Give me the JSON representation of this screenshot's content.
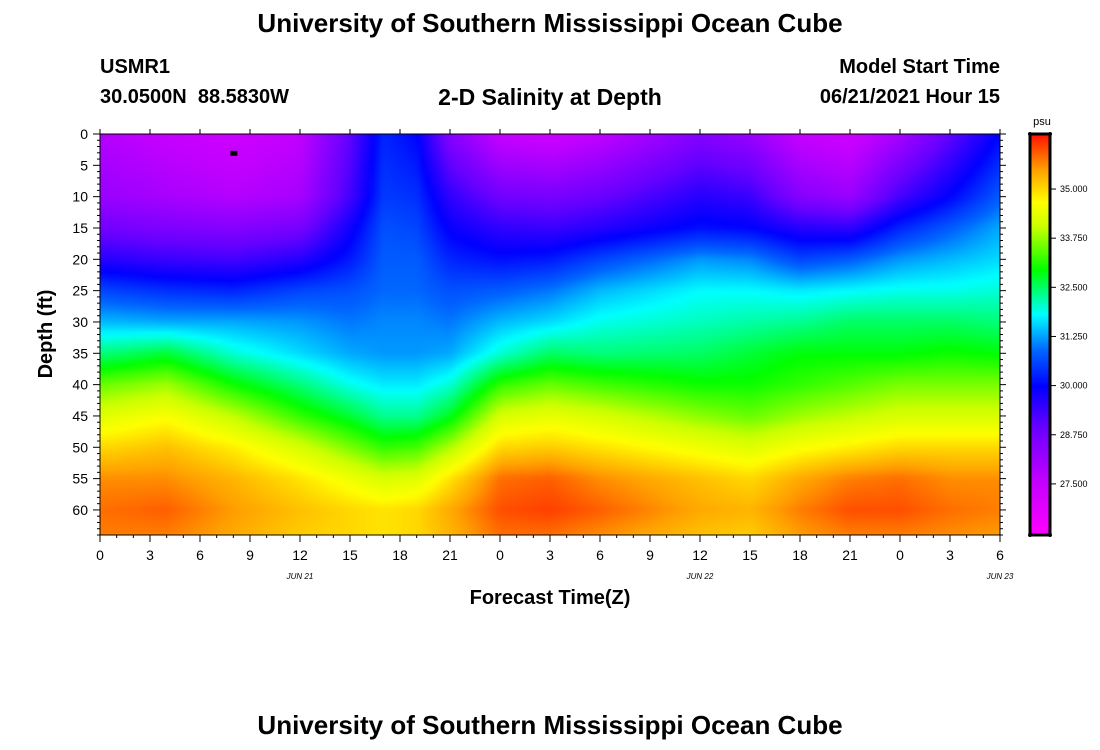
{
  "header": {
    "title": "University of Southern Mississippi Ocean Cube",
    "station_id": "USMR1",
    "coordinates": "30.0500N  88.5830W",
    "plot_title": "2-D Salinity at Depth",
    "model_start_label": "Model Start Time",
    "model_start_value": "06/21/2021 Hour 15"
  },
  "footer": {
    "title": "University of Southern Mississippi Ocean Cube"
  },
  "chart_data": {
    "type": "heatmap",
    "title": "2-D Salinity at Depth",
    "xlabel": "Forecast Time(Z)",
    "ylabel": "Depth (ft)",
    "x_tick_labels": [
      "0",
      "3",
      "6",
      "9",
      "12",
      "15",
      "18",
      "21",
      "0",
      "3",
      "6",
      "9",
      "12",
      "15",
      "18",
      "21",
      "0",
      "3",
      "6"
    ],
    "x_date_labels": [
      {
        "text": "JUN 21",
        "at_tick": 6
      },
      {
        "text": "JUN 22",
        "at_tick": 18
      },
      {
        "text": "JUN 23",
        "at_tick": 27
      }
    ],
    "x_range_hours": [
      0,
      54
    ],
    "y_tick_labels": [
      "0",
      "5",
      "10",
      "15",
      "20",
      "25",
      "30",
      "35",
      "40",
      "45",
      "50",
      "55",
      "60"
    ],
    "ylim_ft": [
      0,
      64
    ],
    "colorbar": {
      "unit": "psu",
      "min": 26.2,
      "max": 36.4,
      "labels": [
        "35.000",
        "33.750",
        "32.500",
        "31.250",
        "30.000",
        "28.750",
        "27.500"
      ]
    },
    "salinity_field": {
      "depths_ft": [
        0,
        10,
        15,
        20,
        25,
        30,
        35,
        40,
        45,
        50,
        55,
        60,
        64
      ],
      "hours": [
        0,
        4,
        8,
        12,
        15,
        17,
        19,
        21,
        24,
        27,
        30,
        36,
        39,
        42,
        45,
        48,
        51,
        54
      ],
      "values_psu": [
        [
          27.8,
          27.5,
          27.3,
          27.6,
          29.0,
          30.3,
          30.0,
          28.5,
          27.5,
          27.3,
          27.6,
          28.5,
          28.2,
          27.5,
          27.3,
          28.0,
          29.0,
          30.0
        ],
        [
          28.2,
          28.0,
          27.8,
          28.0,
          29.3,
          30.5,
          30.4,
          29.5,
          28.8,
          28.7,
          28.9,
          29.6,
          29.4,
          28.5,
          28.2,
          29.3,
          30.0,
          30.8
        ],
        [
          28.8,
          28.6,
          28.5,
          28.7,
          29.8,
          30.7,
          30.6,
          29.9,
          29.5,
          29.4,
          29.6,
          30.1,
          30.0,
          29.6,
          29.5,
          30.3,
          30.8,
          31.3
        ],
        [
          29.6,
          29.4,
          29.3,
          29.6,
          30.2,
          30.8,
          30.8,
          30.3,
          30.1,
          30.2,
          30.6,
          31.2,
          31.1,
          30.6,
          30.8,
          31.2,
          31.4,
          31.6
        ],
        [
          30.6,
          30.4,
          30.3,
          30.6,
          30.7,
          30.9,
          30.9,
          30.7,
          30.8,
          31.0,
          31.4,
          31.8,
          31.8,
          31.7,
          31.8,
          31.9,
          31.9,
          32.0
        ],
        [
          31.4,
          31.3,
          31.3,
          31.2,
          31.0,
          31.1,
          31.1,
          31.0,
          31.4,
          31.6,
          31.9,
          32.1,
          32.2,
          32.3,
          32.5,
          32.5,
          32.5,
          32.4
        ],
        [
          32.4,
          32.7,
          32.0,
          31.6,
          31.3,
          31.2,
          31.2,
          31.3,
          32.0,
          32.5,
          32.4,
          32.5,
          32.7,
          32.9,
          32.9,
          32.9,
          33.0,
          32.9
        ],
        [
          33.5,
          33.8,
          33.0,
          32.4,
          31.9,
          31.7,
          31.7,
          32.0,
          33.2,
          33.5,
          33.3,
          33.0,
          33.0,
          33.2,
          33.4,
          33.6,
          33.6,
          33.6
        ],
        [
          34.3,
          34.6,
          34.0,
          33.2,
          32.7,
          32.3,
          32.3,
          32.8,
          34.2,
          34.4,
          34.2,
          33.7,
          33.5,
          33.8,
          34.0,
          34.2,
          34.2,
          34.2
        ],
        [
          35.0,
          35.2,
          34.8,
          34.2,
          33.6,
          33.2,
          33.3,
          33.9,
          35.0,
          35.1,
          34.9,
          34.5,
          34.3,
          34.6,
          34.8,
          35.0,
          35.0,
          35.0
        ],
        [
          35.6,
          35.6,
          35.3,
          34.9,
          34.5,
          34.2,
          34.3,
          34.9,
          35.8,
          35.9,
          35.6,
          35.2,
          35.0,
          35.4,
          35.7,
          35.8,
          35.6,
          35.6
        ],
        [
          35.8,
          35.9,
          35.5,
          35.2,
          35.0,
          34.9,
          35.0,
          35.4,
          36.0,
          36.1,
          35.9,
          35.4,
          35.3,
          35.7,
          36.0,
          36.0,
          35.8,
          35.7
        ],
        [
          35.7,
          35.7,
          35.4,
          35.1,
          35.0,
          34.9,
          35.0,
          35.3,
          35.8,
          35.8,
          35.6,
          35.2,
          35.1,
          35.5,
          35.7,
          35.7,
          35.6,
          35.5
        ]
      ]
    },
    "marker": {
      "hour": 8,
      "depth_ft": 3
    }
  }
}
